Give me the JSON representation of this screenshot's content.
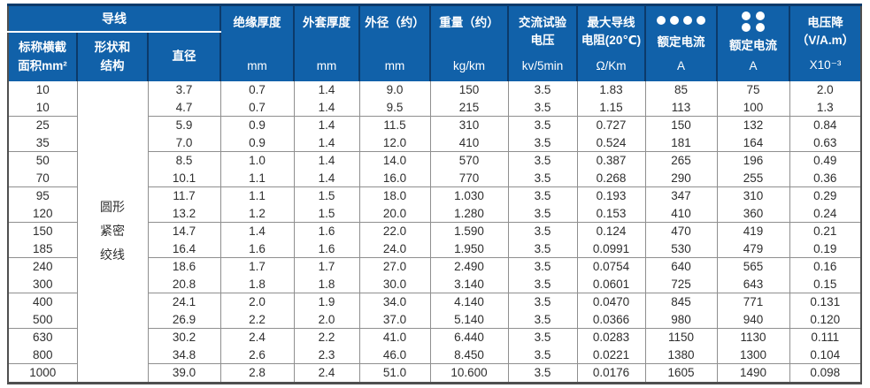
{
  "header": {
    "conductor_group": "导线",
    "sub_headers": {
      "nominal_area": "标称横截\n面积mm²",
      "shape_structure": "形状和\n结构",
      "diameter": "直径"
    },
    "spec_cols": [
      {
        "label": "绝缘厚度",
        "unit": "mm"
      },
      {
        "label": "外套厚度",
        "unit": "mm"
      },
      {
        "label": "外径（约）",
        "unit": "mm"
      },
      {
        "label": "重量（约）",
        "unit": "kg/km"
      },
      {
        "label": "交流试验\n电压",
        "unit": "kv/5min"
      },
      {
        "label": "最大导线\n电阻(20℃)",
        "unit": "Ω/Km"
      },
      {
        "label": "额定电流",
        "unit": "A",
        "icon": "four-dots-row-icon"
      },
      {
        "label": "额定电流",
        "unit": "A",
        "icon": "four-dots-grid-icon"
      },
      {
        "label": "电压降\n（V/A.m）",
        "unit": "X10⁻³"
      }
    ]
  },
  "table": {
    "shape_structure_value": "圆形\n紧密\n绞线",
    "col_keys": [
      "area",
      "diameter",
      "insulation-thickness",
      "sheath-thickness",
      "outer-diameter",
      "weight",
      "test-voltage",
      "max-resistance",
      "rated-current-4core",
      "rated-current-2x2",
      "voltage-drop"
    ],
    "rows": [
      [
        "10",
        "3.7",
        "0.7",
        "1.4",
        "9.0",
        "150",
        "3.5",
        "1.83",
        "85",
        "75",
        "2.0"
      ],
      [
        "10",
        "4.7",
        "0.7",
        "1.4",
        "9.5",
        "215",
        "3.5",
        "1.15",
        "113",
        "100",
        "1.3"
      ],
      [
        "25",
        "5.9",
        "0.9",
        "1.4",
        "11.5",
        "310",
        "3.5",
        "0.727",
        "150",
        "132",
        "0.84"
      ],
      [
        "35",
        "7.0",
        "0.9",
        "1.4",
        "12.0",
        "410",
        "3.5",
        "0.524",
        "181",
        "164",
        "0.63"
      ],
      [
        "50",
        "8.5",
        "1.0",
        "1.4",
        "14.0",
        "570",
        "3.5",
        "0.387",
        "265",
        "196",
        "0.49"
      ],
      [
        "70",
        "10.1",
        "1.1",
        "1.4",
        "16.0",
        "770",
        "3.5",
        "0.268",
        "290",
        "255",
        "0.36"
      ],
      [
        "95",
        "11.7",
        "1.1",
        "1.5",
        "18.0",
        "1.030",
        "3.5",
        "0.193",
        "347",
        "310",
        "0.29"
      ],
      [
        "120",
        "13.2",
        "1.2",
        "1.5",
        "20.0",
        "1.280",
        "3.5",
        "0.153",
        "410",
        "360",
        "0.24"
      ],
      [
        "150",
        "14.7",
        "1.4",
        "1.6",
        "22.0",
        "1.590",
        "3.5",
        "0.124",
        "470",
        "419",
        "0.21"
      ],
      [
        "185",
        "16.4",
        "1.6",
        "1.6",
        "24.0",
        "1.950",
        "3.5",
        "0.0991",
        "530",
        "479",
        "0.19"
      ],
      [
        "240",
        "18.6",
        "1.7",
        "1.7",
        "27.0",
        "2.490",
        "3.5",
        "0.0754",
        "640",
        "565",
        "0.16"
      ],
      [
        "300",
        "20.8",
        "1.8",
        "1.8",
        "30.0",
        "3.140",
        "3.5",
        "0.0601",
        "725",
        "643",
        "0.15"
      ],
      [
        "400",
        "24.1",
        "2.0",
        "1.9",
        "34.0",
        "4.140",
        "3.5",
        "0.0470",
        "845",
        "771",
        "0.131"
      ],
      [
        "500",
        "26.9",
        "2.2",
        "2.0",
        "37.0",
        "5.140",
        "3.5",
        "0.0366",
        "980",
        "940",
        "0.120"
      ],
      [
        "630",
        "30.2",
        "2.4",
        "2.2",
        "41.0",
        "6.440",
        "3.5",
        "0.0283",
        "1150",
        "1130",
        "0.111"
      ],
      [
        "800",
        "34.8",
        "2.6",
        "2.3",
        "46.0",
        "8.450",
        "3.5",
        "0.0221",
        "1380",
        "1300",
        "0.104"
      ],
      [
        "1000",
        "39.0",
        "2.8",
        "2.4",
        "51.0",
        "10.600",
        "3.5",
        "0.0176",
        "1605",
        "1490",
        "0.098"
      ]
    ]
  },
  "colors": {
    "header_blue": "#1161a9",
    "header_divider_navy": "#0c3a6a",
    "grid_gray": "#8f8f8f",
    "outer_border_gray": "#4f4f4f",
    "text_dark": "#2e2e2e"
  }
}
